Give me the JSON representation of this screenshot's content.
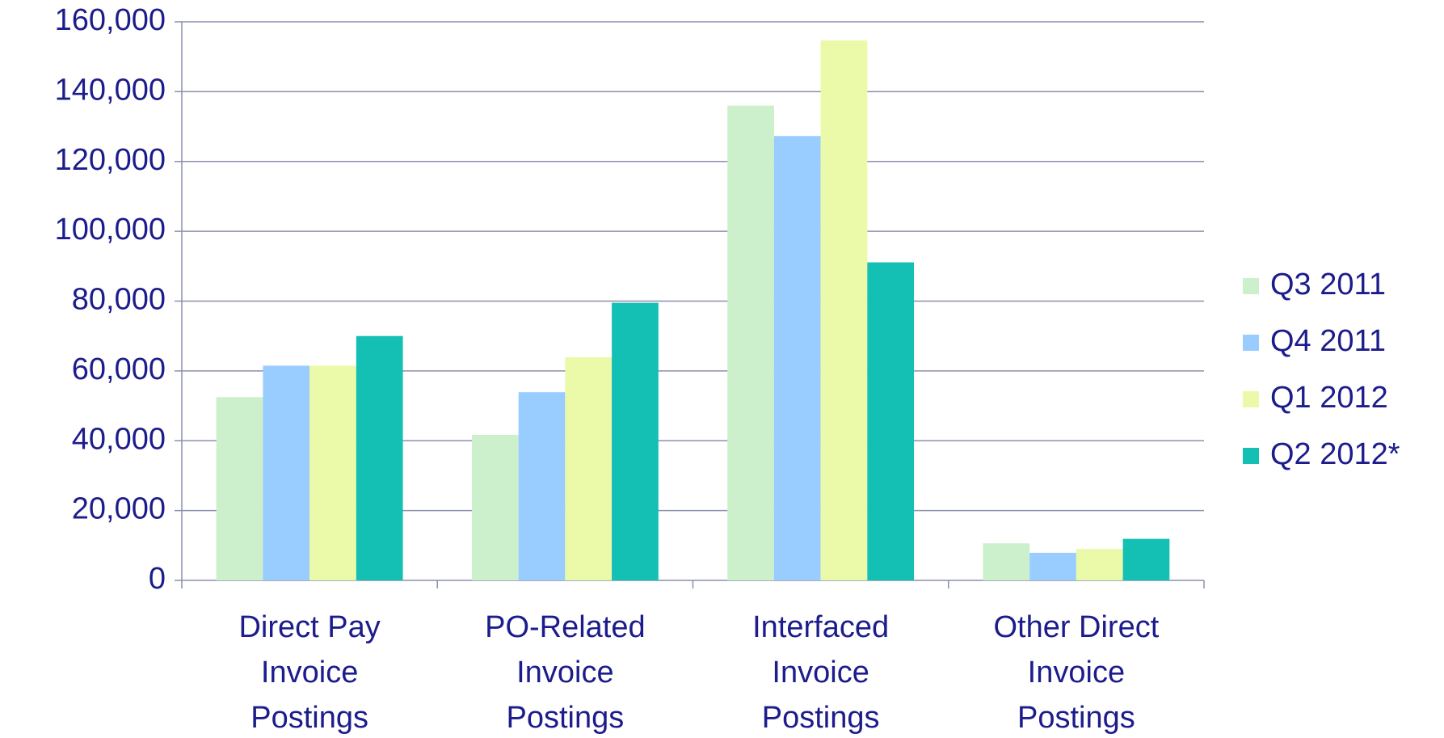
{
  "chart_data": {
    "type": "bar",
    "categories": [
      "Direct Pay\nInvoice\nPostings",
      "PO-Related\nInvoice\nPostings",
      "Interfaced\nInvoice\nPostings",
      "Other Direct\nInvoice\nPostings"
    ],
    "series": [
      {
        "name": "Q3 2011",
        "color": "#ccefcc",
        "values": [
          52500,
          41700,
          136000,
          10600
        ]
      },
      {
        "name": "Q4 2011",
        "color": "#99ccff",
        "values": [
          61500,
          53900,
          127300,
          7900
        ]
      },
      {
        "name": "Q1 2012",
        "color": "#eafaa8",
        "values": [
          61500,
          63900,
          154700,
          9000
        ]
      },
      {
        "name": "Q2 2012*",
        "color": "#14bfb4",
        "values": [
          70000,
          79500,
          91100,
          11900
        ]
      }
    ],
    "ylim": [
      0,
      160000
    ],
    "yticks": [
      0,
      {
        "value": 20000,
        "label": "20,000"
      },
      {
        "value": 40000,
        "label": "40,000"
      },
      {
        "value": 60000,
        "label": "60,000"
      },
      {
        "value": 80000,
        "label": "80,000"
      },
      {
        "value": 100000,
        "label": "100,000"
      },
      {
        "value": 120000,
        "label": "120,000"
      },
      {
        "value": 140000,
        "label": "140,000"
      },
      {
        "value": 160000,
        "label": "160,000"
      }
    ],
    "grid": true,
    "legend": "right"
  }
}
